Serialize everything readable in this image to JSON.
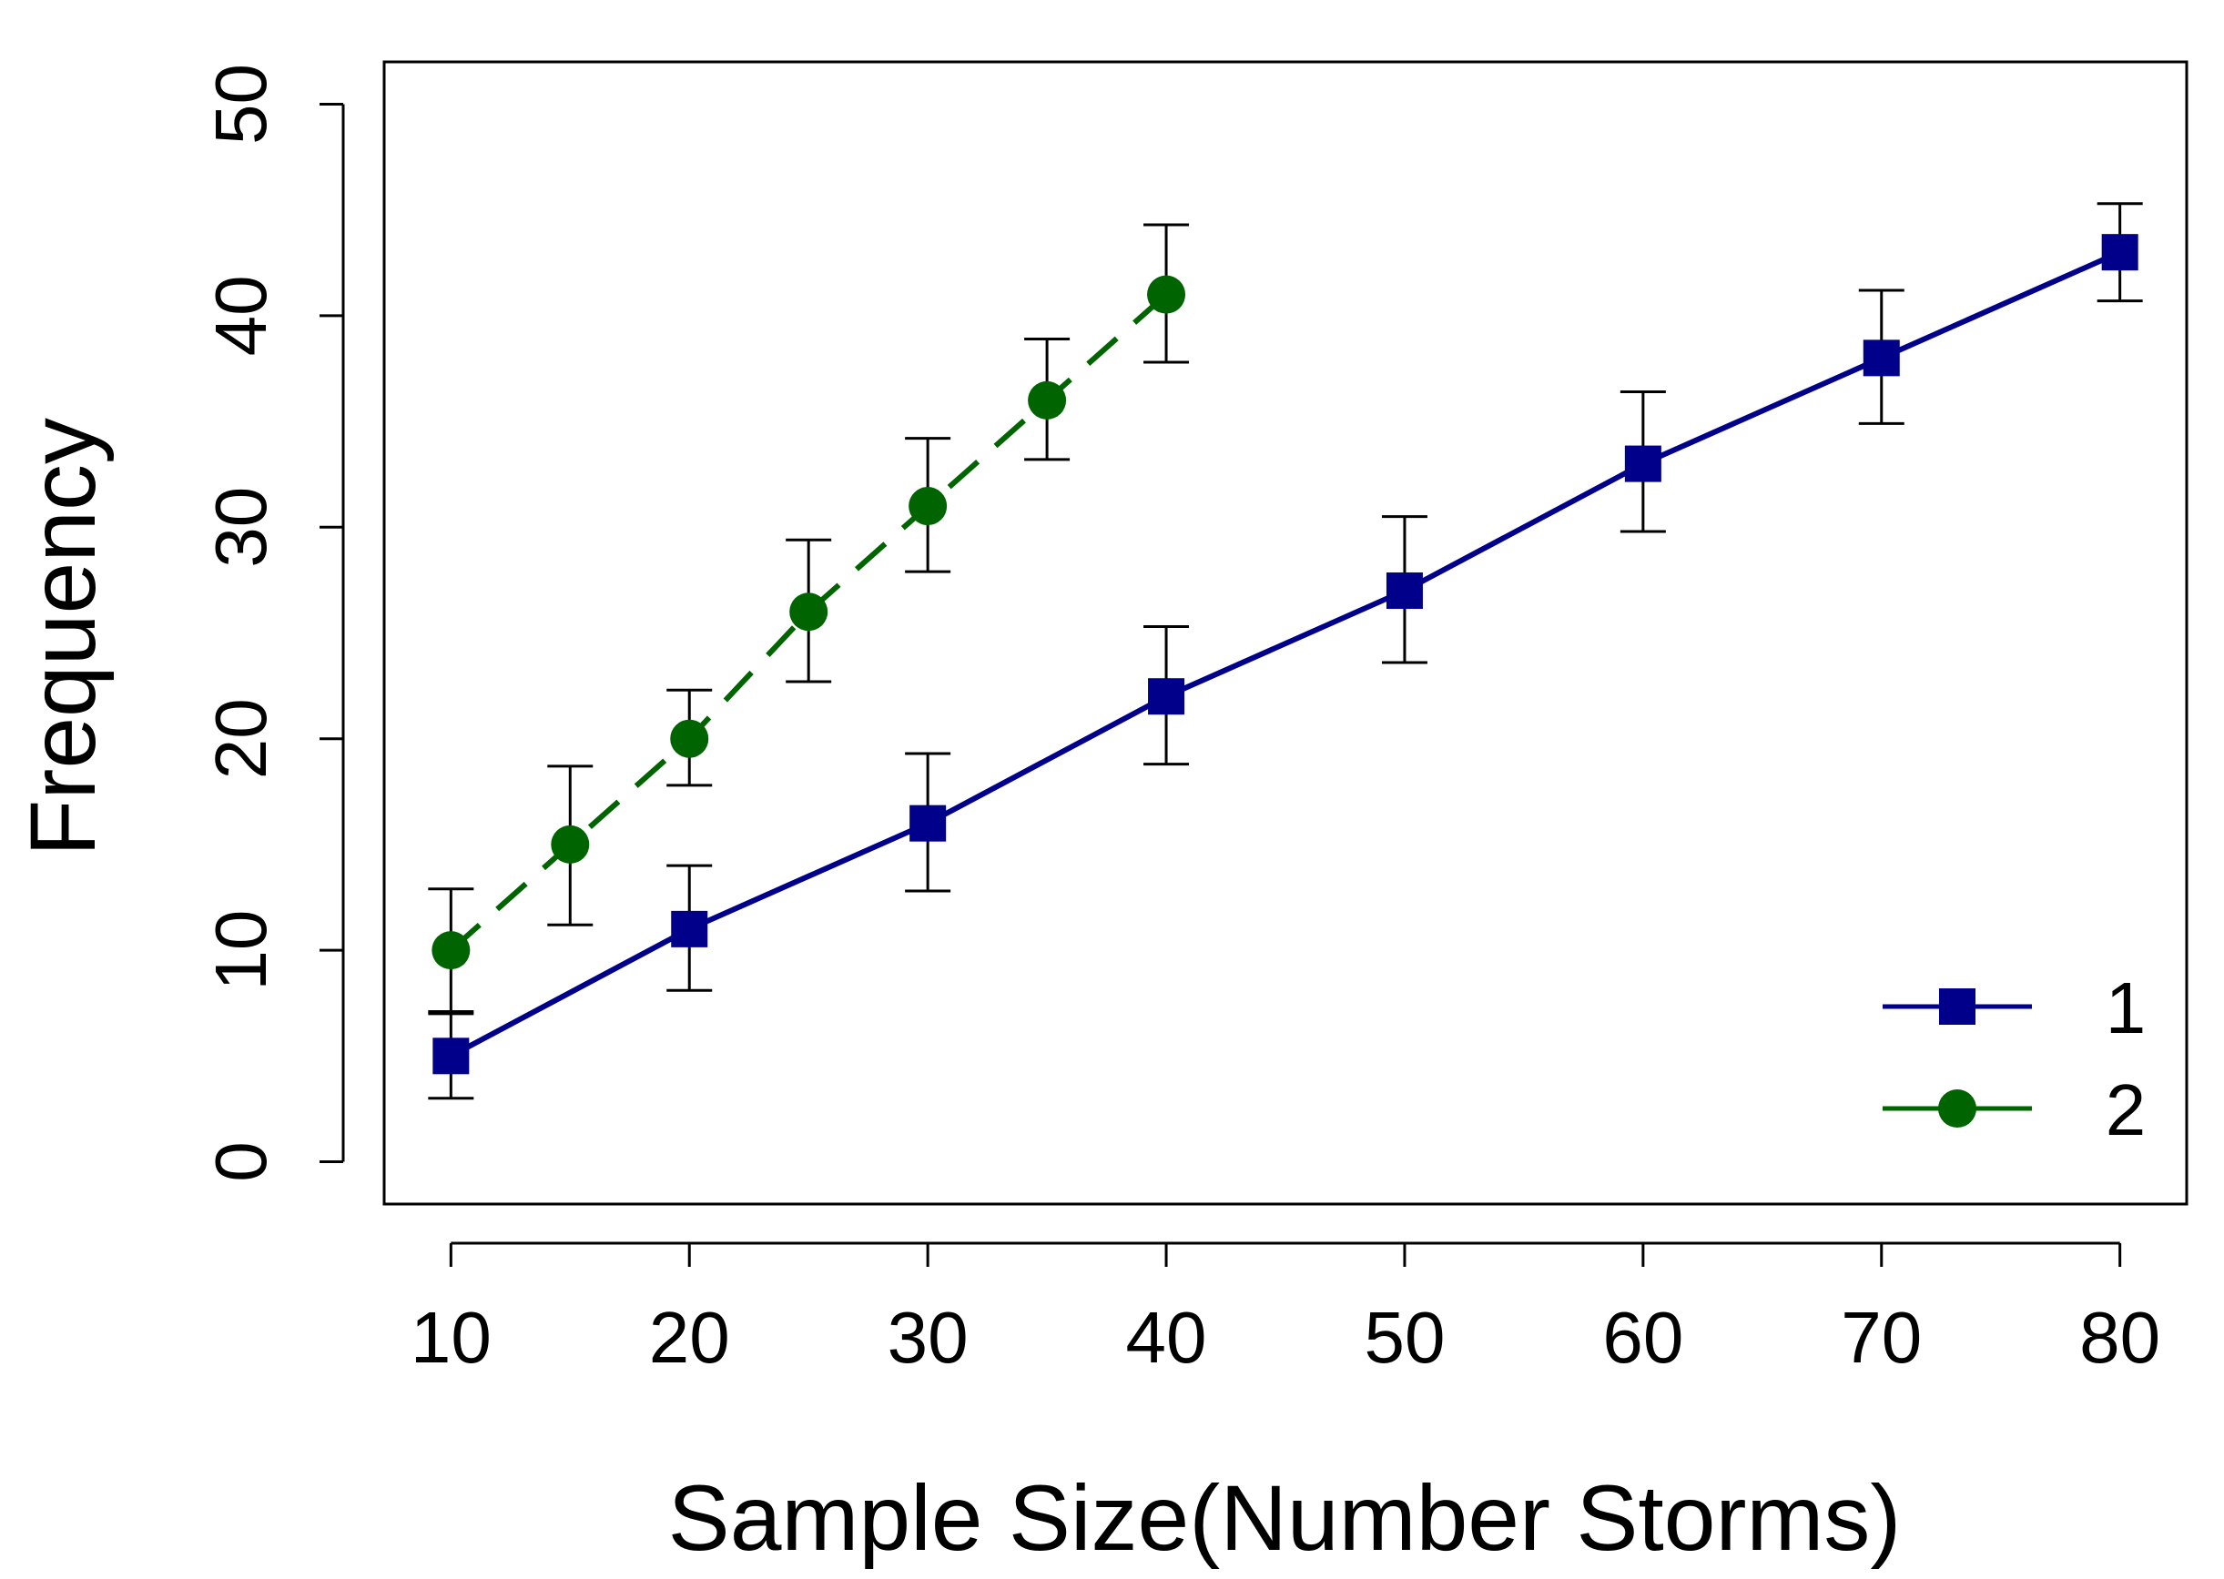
{
  "chart_data": {
    "type": "line",
    "title": "",
    "xlabel": "Sample Size(Number Storms)",
    "ylabel": "Frequency",
    "xlim": [
      7.2,
      82.8
    ],
    "ylim": [
      -2,
      52
    ],
    "xticks": [
      10,
      20,
      30,
      40,
      50,
      60,
      70,
      80
    ],
    "xtick_labels": [
      "10",
      "20",
      "30",
      "40",
      "50",
      "60",
      "70",
      "80"
    ],
    "yticks": [
      0,
      10,
      20,
      30,
      40,
      50
    ],
    "ytick_labels": [
      "0",
      "10",
      "20",
      "30",
      "40",
      "50"
    ],
    "grid": false,
    "legend_position": "bottom-right",
    "series": [
      {
        "name": "1",
        "color": "#00008B",
        "marker": "square",
        "line_style": "solid",
        "x": [
          10,
          20,
          30,
          40,
          50,
          60,
          70,
          80
        ],
        "values": [
          5,
          11,
          16,
          22,
          27,
          33,
          38,
          43
        ],
        "err_low": [
          3,
          8.1,
          12.8,
          18.8,
          23.6,
          29.8,
          34.9,
          40.7
        ],
        "err_high": [
          7.1,
          14,
          19.3,
          25.3,
          30.5,
          36.4,
          41.2,
          45.3
        ]
      },
      {
        "name": "2",
        "color": "#006400",
        "marker": "circle",
        "line_style": "dashed",
        "x": [
          10,
          15,
          20,
          25,
          30,
          35,
          40
        ],
        "values": [
          10,
          15,
          20,
          26,
          31,
          36,
          41
        ],
        "err_low": [
          7,
          11.2,
          17.8,
          22.7,
          27.9,
          33.2,
          37.8
        ],
        "err_high": [
          12.9,
          18.7,
          22.3,
          29.4,
          34.2,
          38.9,
          44.3
        ]
      }
    ]
  }
}
